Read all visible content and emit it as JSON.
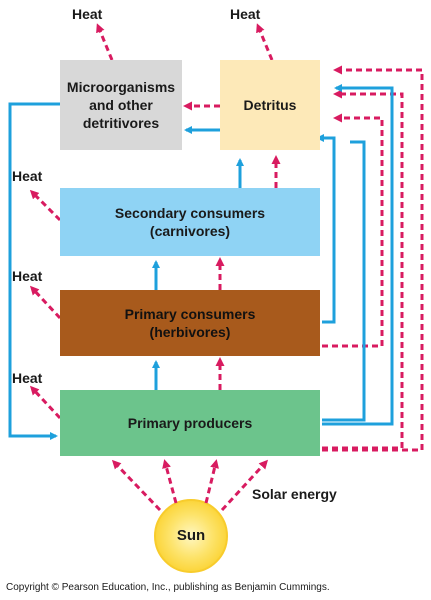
{
  "diagram": {
    "heat_label": "Heat",
    "boxes": {
      "microorganisms": "Microorganisms\nand other\ndetritivores",
      "detritus": "Detritus",
      "secondary": "Secondary consumers\n(carnivores)",
      "primary_consumers": "Primary consumers\n(herbivores)",
      "producers": "Primary producers"
    },
    "sun": "Sun",
    "solar_energy": "Solar energy",
    "copyright": "Copyright © Pearson Education, Inc., publishing as Benjamin Cummings.",
    "colors": {
      "energy_flow": "#d81b60",
      "chemical_cycling": "#1ea0dc",
      "microorganisms_box": "#d8d8d8",
      "detritus_box": "#fde9b8",
      "secondary_box": "#8fd3f4",
      "primary_consumers_box": "#a85a1c",
      "producers_box": "#6cc48c",
      "sun": "#fde36a"
    }
  }
}
